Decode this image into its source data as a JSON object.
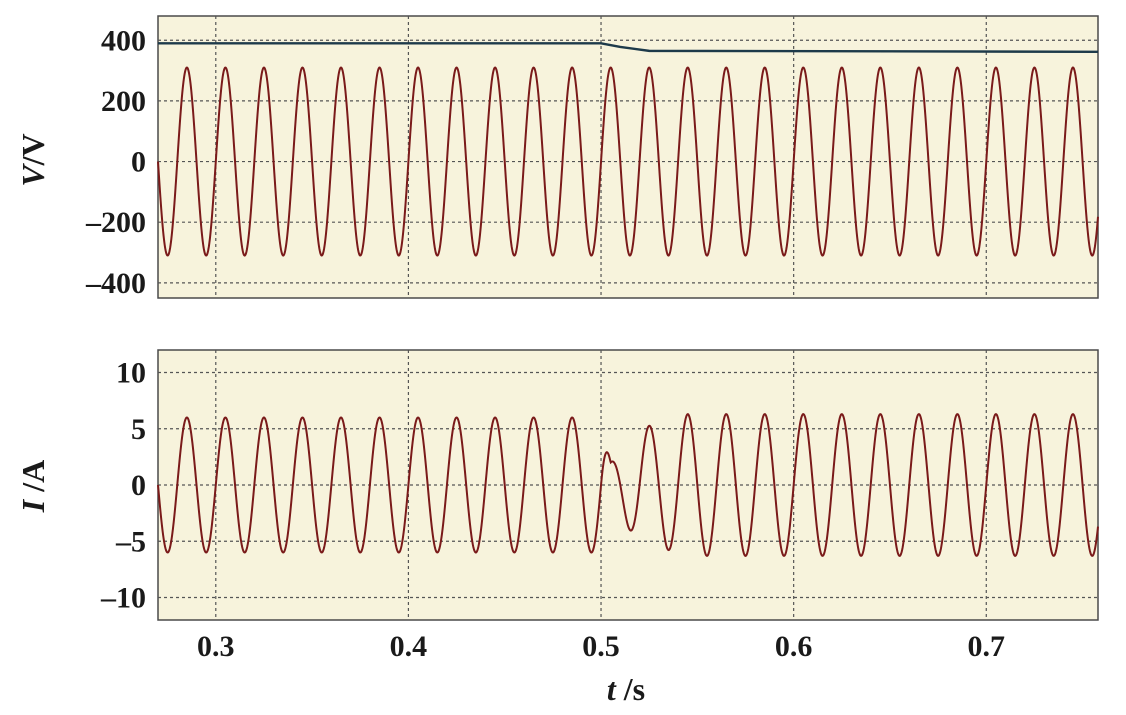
{
  "chart_data": [
    {
      "type": "line",
      "panel": "top",
      "ylabel_var": "V",
      "ylabel_unit": "/V",
      "xlim": [
        0.27,
        0.758
      ],
      "ylim": [
        -450,
        480
      ],
      "yticks": [
        400,
        200,
        0,
        -200,
        -400
      ],
      "ytick_labels": [
        "400",
        "200",
        "0",
        "–200",
        "–400"
      ],
      "grid": true,
      "background": "#f7f3dc",
      "series": [
        {
          "kind": "sine",
          "color": "#7a1a1a",
          "frequency_hz": 50,
          "amplitude": [
            [
              0.27,
              310
            ],
            [
              0.758,
              310
            ]
          ]
        },
        {
          "kind": "dc",
          "color": "#1d3a4a",
          "points": [
            [
              0.27,
              390
            ],
            [
              0.5,
              390
            ],
            [
              0.51,
              378
            ],
            [
              0.525,
              365
            ],
            [
              0.758,
              362
            ]
          ]
        }
      ]
    },
    {
      "type": "line",
      "panel": "bottom",
      "ylabel_var": "I",
      "ylabel_unit": " /A",
      "xlabel_var": "t",
      "xlabel_unit": " /s",
      "xlim": [
        0.27,
        0.758
      ],
      "ylim": [
        -12,
        12
      ],
      "xticks": [
        0.3,
        0.4,
        0.5,
        0.6,
        0.7
      ],
      "xtick_labels": [
        "0.3",
        "0.4",
        "0.5",
        "0.6",
        "0.7"
      ],
      "yticks": [
        10,
        5,
        0,
        -5,
        -10
      ],
      "ytick_labels": [
        "10",
        "5",
        "0",
        "–5",
        "–10"
      ],
      "grid": true,
      "background": "#f7f3dc",
      "series": [
        {
          "kind": "sine",
          "color": "#7a1a1a",
          "frequency_hz": 50,
          "amplitude": [
            [
              0.27,
              6.0
            ],
            [
              0.5,
              6.0
            ],
            [
              0.505,
              2.0
            ],
            [
              0.52,
              5.0
            ],
            [
              0.545,
              6.3
            ],
            [
              0.758,
              6.3
            ]
          ]
        }
      ]
    }
  ]
}
